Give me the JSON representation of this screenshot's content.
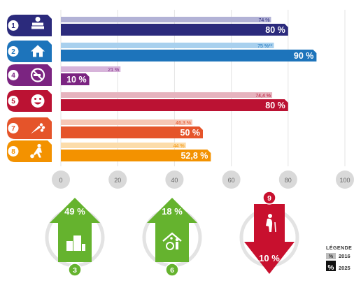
{
  "chart_data": {
    "type": "bar",
    "orientation": "horizontal",
    "xlim": [
      0,
      100
    ],
    "x_ticks": [
      "0",
      "20",
      "40",
      "60",
      "80",
      "100"
    ],
    "grid": true,
    "rows": [
      {
        "number": "1",
        "icon": "books-apple-icon",
        "color": "#2b2a7c",
        "light": "#b2b2d6",
        "value_2016": 74,
        "label_2016": "74 %",
        "value_2025": 80,
        "label_2025": "80 %"
      },
      {
        "number": "2",
        "icon": "house-icon",
        "color": "#1d74bb",
        "light": "#a8d0ee",
        "value_2016": 75,
        "label_2016": "75 %**",
        "value_2025": 90,
        "label_2025": "90 %"
      },
      {
        "number": "4",
        "icon": "no-smoking-icon",
        "color": "#7b2481",
        "light": "#d7b4da",
        "value_2016": 21,
        "label_2016": "21 %",
        "value_2025": 10,
        "label_2025": "10 %"
      },
      {
        "number": "5",
        "icon": "smiley-icon",
        "color": "#bb1233",
        "light": "#e6b3be",
        "value_2016": 74.4,
        "label_2016": "74,4 %",
        "value_2025": 80,
        "label_2025": "80 %"
      },
      {
        "number": "7",
        "icon": "fruits-vegetables-icon",
        "color": "#e5542a",
        "light": "#f6c6b5",
        "value_2016": 46.3,
        "label_2016": "46,3 %",
        "value_2025": 50,
        "label_2025": "50 %"
      },
      {
        "number": "8",
        "icon": "soccer-player-icon",
        "color": "#f39200",
        "light": "#fcdcaa",
        "value_2016": 44,
        "label_2016": "44 %",
        "value_2025": 52.8,
        "label_2025": "52,8 %"
      }
    ],
    "arrows": [
      {
        "number": "3",
        "value_label": "49 %",
        "direction": "up",
        "color": "#65b32e",
        "icon": "city-buildings-icon"
      },
      {
        "number": "6",
        "value_label": "18 %",
        "direction": "up",
        "color": "#65b32e",
        "icon": "wheelchair-house-icon"
      },
      {
        "number": "9",
        "value_label": "10 %",
        "direction": "down",
        "color": "#c8102e",
        "icon": "elderly-person-icon"
      }
    ],
    "legend": {
      "title": "LÉGENDE",
      "items": [
        {
          "swatch": "%",
          "label": "2016",
          "style": "light"
        },
        {
          "swatch": "%",
          "label": "2025",
          "style": "dark"
        }
      ]
    }
  }
}
